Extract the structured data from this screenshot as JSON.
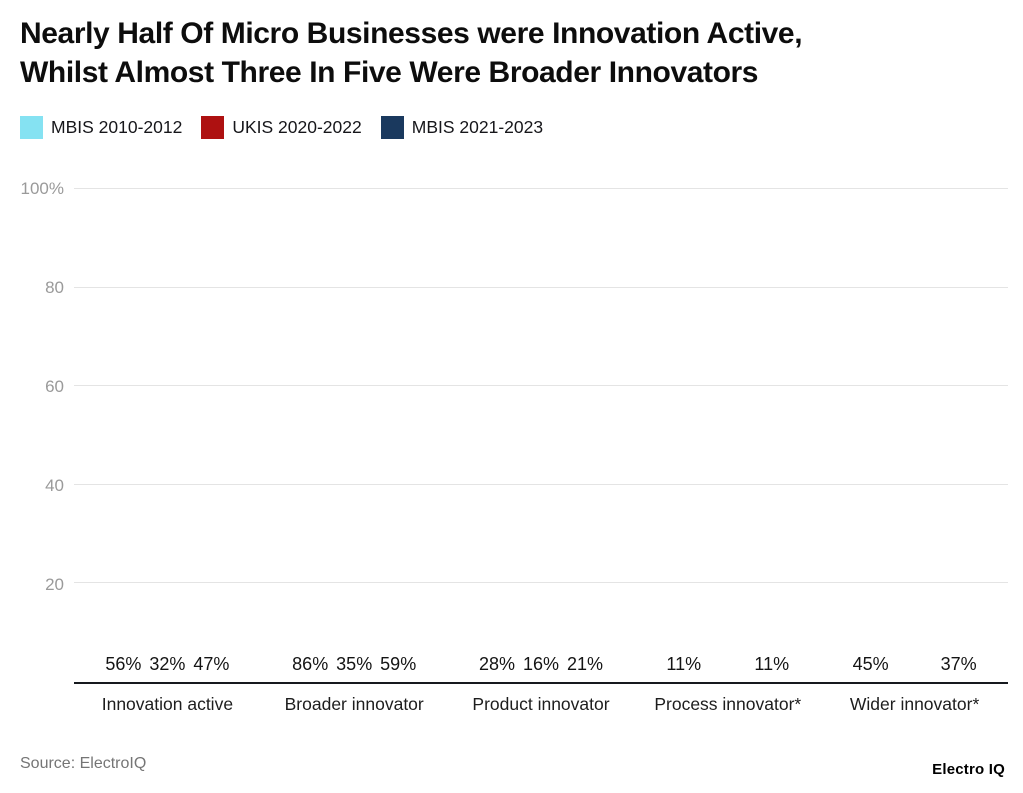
{
  "header": {
    "title_line1": "Nearly Half Of Micro Businesses were Innovation Active,",
    "title_line2": "Whilst Almost Three In Five Were Broader Innovators"
  },
  "footer": {
    "source": "Source: ElectroIQ",
    "brand": "Electro IQ"
  },
  "chart_data": {
    "type": "bar",
    "title": "Nearly Half Of Micro Businesses were Innovation Active, Whilst Almost Three In Five Were Broader Innovators",
    "unit": "%",
    "categories": [
      "Innovation active",
      "Broader innovator",
      "Product innovator",
      "Process innovator*",
      "Wider innovator*"
    ],
    "series": [
      {
        "name": "MBIS 2010-2012",
        "color": "#85E2F2",
        "values": [
          56,
          86,
          28,
          11,
          45
        ]
      },
      {
        "name": "UKIS 2020-2022",
        "color": "#AE1111",
        "values": [
          32,
          35,
          16,
          null,
          null
        ]
      },
      {
        "name": "MBIS 2021-2023",
        "color": "#1A395E",
        "values": [
          47,
          59,
          21,
          11,
          37
        ]
      }
    ],
    "ylim": [
      0,
      100
    ],
    "yticks": [
      20,
      40,
      60,
      80,
      100
    ],
    "ytick_labels": [
      "20",
      "40",
      "60",
      "80",
      "100%"
    ],
    "grid": "horizontal",
    "legend_position": "top-left",
    "value_labels": "above-bars"
  }
}
